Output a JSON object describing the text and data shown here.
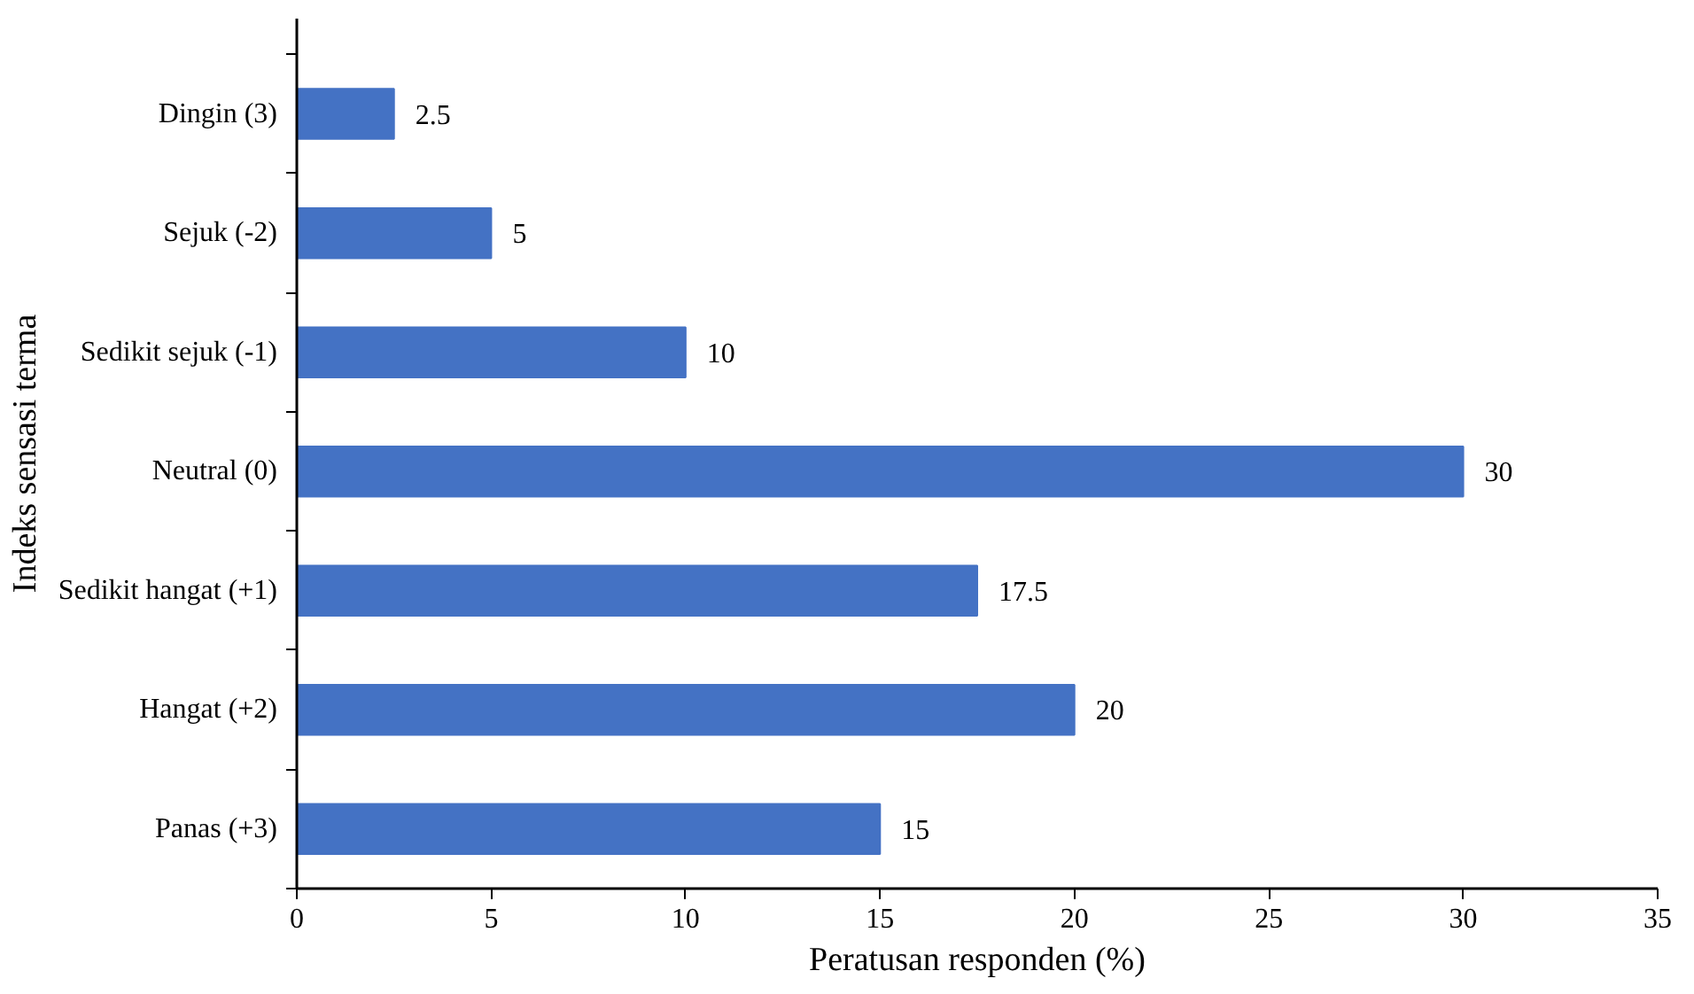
{
  "chart_data": {
    "type": "bar",
    "orientation": "horizontal",
    "xlabel": "Peratusan responden (%)",
    "ylabel": "Indeks sensasi terma",
    "categories": [
      "Dingin (3)",
      "Sejuk (-2)",
      "Sedikit sejuk (-1)",
      "Neutral (0)",
      "Sedikit hangat (+1)",
      "Hangat (+2)",
      "Panas (+3)"
    ],
    "values": [
      2.5,
      5,
      10,
      30,
      17.5,
      20,
      15
    ],
    "color": "#4472c4",
    "xlim": [
      0,
      35
    ],
    "xticks": [
      0,
      5,
      10,
      15,
      20,
      25,
      30,
      35
    ],
    "data_labels": true
  }
}
